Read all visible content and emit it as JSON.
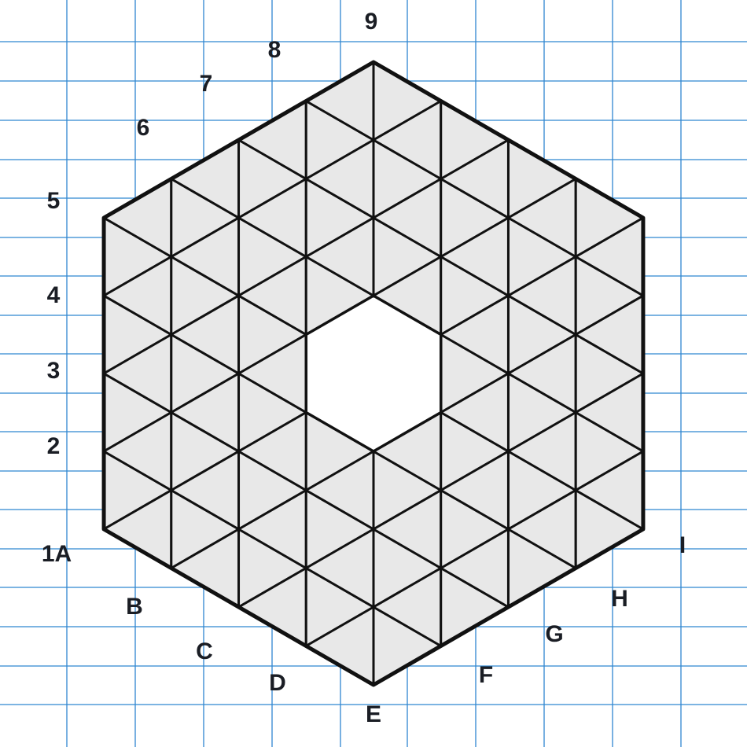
{
  "diagram": {
    "colors": {
      "background": "#ffffff",
      "grid": "#2f86d1",
      "fill": "#e8e8e8",
      "stroke": "#111111",
      "label": "#1a1d24"
    },
    "hex_grid": {
      "rings": 4,
      "hole_rings": 1
    },
    "left_labels": [
      "1A",
      "2",
      "3",
      "4",
      "5",
      "6",
      "7",
      "8",
      "9"
    ],
    "bottom_labels": [
      "B",
      "C",
      "D",
      "E",
      "F",
      "G",
      "H",
      "I"
    ]
  }
}
